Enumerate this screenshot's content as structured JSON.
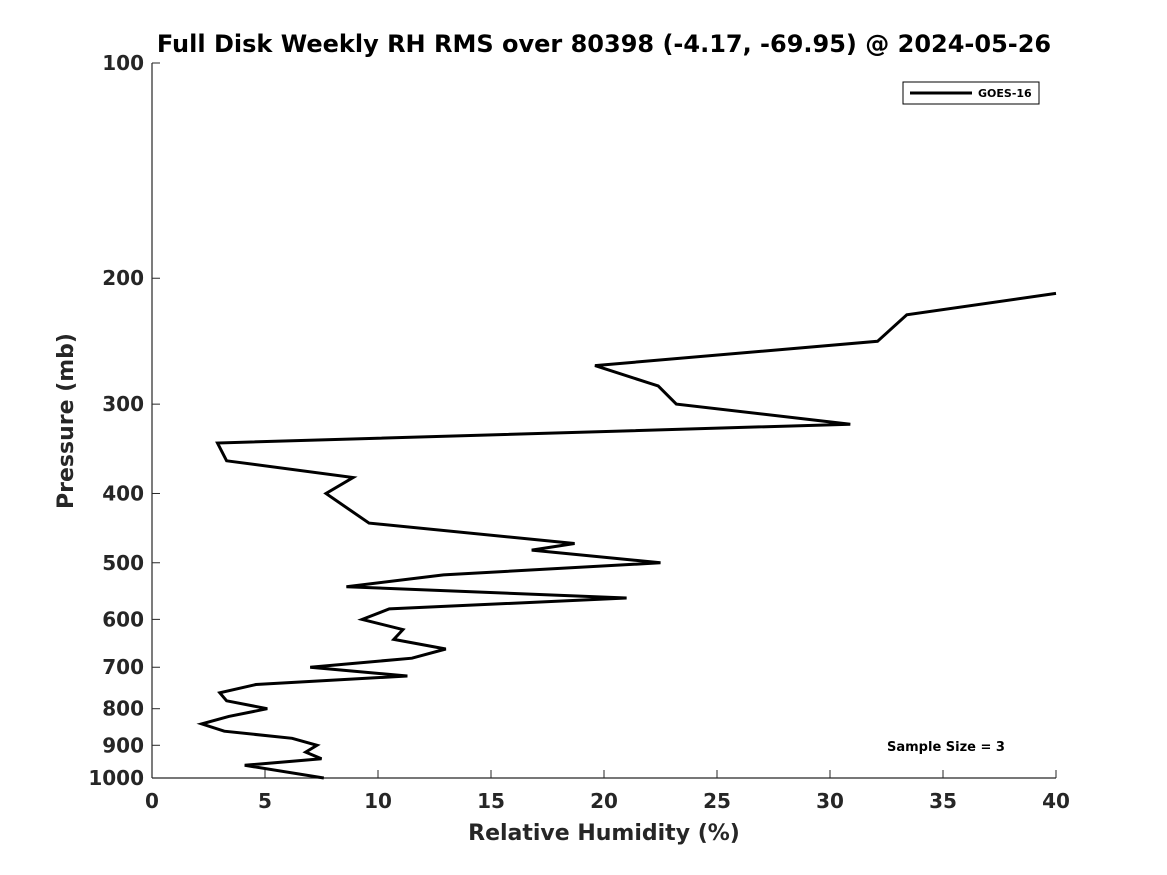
{
  "chart_data": {
    "type": "line",
    "title": "Full Disk Weekly RH RMS over 80398 (-4.17, -69.95) @ 2024-05-26",
    "xlabel": "Relative Humidity (%)",
    "ylabel": "Pressure (mb)",
    "xlim": [
      0,
      40
    ],
    "ylim": [
      100,
      1000
    ],
    "y_scale": "log",
    "y_reversed": true,
    "x_ticks": [
      0,
      5,
      10,
      15,
      20,
      25,
      30,
      35,
      40
    ],
    "y_ticks": [
      100,
      200,
      300,
      400,
      500,
      600,
      700,
      800,
      900,
      1000
    ],
    "x_tick_labels": [
      "0",
      "5",
      "10",
      "15",
      "20",
      "25",
      "30",
      "35",
      "40"
    ],
    "y_tick_labels": [
      "100",
      "200",
      "300",
      "400",
      "500",
      "600",
      "700",
      "800",
      "900",
      "1000"
    ],
    "legend_position": "top-right",
    "grid": false,
    "annotation": "Sample Size = 3",
    "series": [
      {
        "name": "GOES-16",
        "color": "#000000",
        "x": [
          40.0,
          33.4,
          32.1,
          19.6,
          22.4,
          23.2,
          30.9,
          2.9,
          3.3,
          8.9,
          7.7,
          9.6,
          18.7,
          16.8,
          22.5,
          12.9,
          8.6,
          21.0,
          10.5,
          9.3,
          11.1,
          10.7,
          13.0,
          11.5,
          7.0,
          11.3,
          4.6,
          3.0,
          3.3,
          5.1,
          3.4,
          2.2,
          3.2,
          6.2,
          7.3,
          6.8,
          7.5,
          4.1,
          7.6
        ],
        "y": [
          210,
          225,
          245,
          265,
          283,
          300,
          320,
          340,
          360,
          380,
          400,
          440,
          470,
          480,
          500,
          520,
          540,
          560,
          580,
          600,
          620,
          640,
          660,
          680,
          700,
          720,
          740,
          760,
          780,
          800,
          820,
          840,
          860,
          880,
          900,
          920,
          940,
          960,
          1000
        ]
      }
    ]
  }
}
